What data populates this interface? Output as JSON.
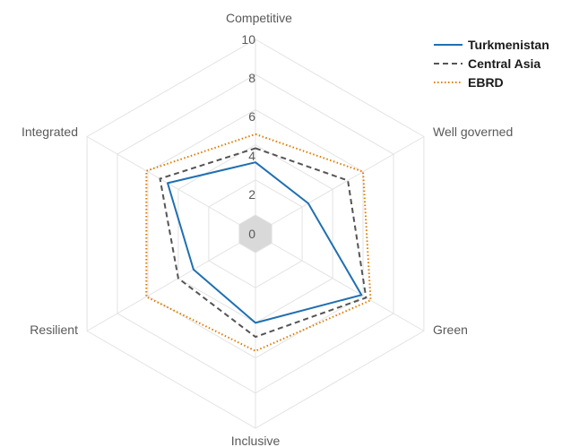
{
  "chart_data": {
    "type": "radar",
    "axes": [
      "Competitive",
      "Well governed",
      "Green",
      "Inclusive",
      "Resilient",
      "Integrated"
    ],
    "r_ticks": [
      0,
      2,
      4,
      6,
      8,
      10
    ],
    "r_range": [
      -2,
      10
    ],
    "grid_levels": [
      0,
      2,
      4,
      6,
      8,
      10
    ],
    "legend_position": "top-right",
    "series": [
      {
        "name": "Turkmenistan",
        "color": "#1f6fb2",
        "dash": "solid",
        "values": [
          3.0,
          2.4,
          5.9,
          4.0,
          3.0,
          4.7
        ]
      },
      {
        "name": "Central Asia",
        "color": "#555555",
        "dash": "dashed",
        "values": [
          3.8,
          5.0,
          6.2,
          4.8,
          4.0,
          5.2
        ]
      },
      {
        "name": "EBRD",
        "color": "#e07b00",
        "dash": "dotted",
        "values": [
          4.6,
          6.0,
          6.5,
          5.6,
          6.1,
          6.1
        ]
      }
    ]
  }
}
